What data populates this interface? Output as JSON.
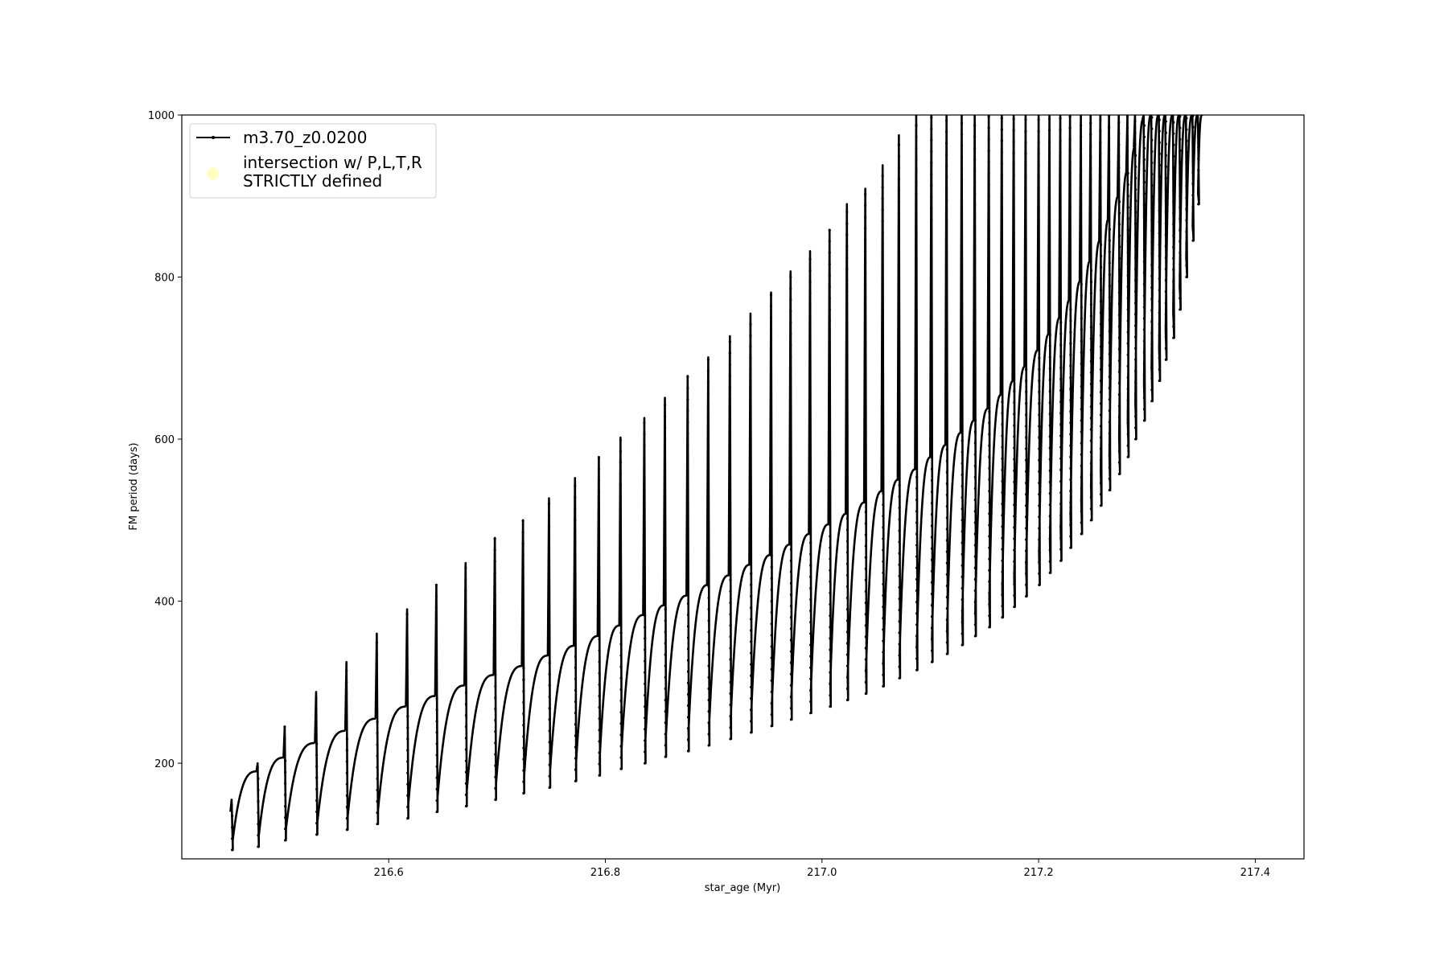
{
  "chart_data": {
    "type": "line",
    "title": "",
    "xlabel": "star_age (Myr)",
    "ylabel": "FM period (days)",
    "xlim": [
      216.409,
      217.445
    ],
    "ylim": [
      82,
      1000
    ],
    "xticks": [
      "216.6",
      "216.8",
      "217.0",
      "217.2",
      "217.4"
    ],
    "yticks": [
      "200",
      "400",
      "600",
      "800",
      "1000"
    ],
    "grid": false,
    "legend": {
      "placement": "upper-left",
      "entries": [
        {
          "label": "m3.70_z0.0200",
          "marker": "line-with-dots",
          "color": "#000000"
        },
        {
          "label_line1": "intersection w/ P,L,T,R",
          "label_line2": "STRICTLY defined",
          "marker": "circle",
          "color": "#ffffc0"
        }
      ]
    },
    "series": [
      {
        "name": "m3.70_z0.0200",
        "color": "#000000",
        "description_of_cycles": "per-cycle values",
        "cycle_start_age": [
          216.455,
          216.479,
          216.504,
          216.533,
          216.561,
          216.589,
          216.617,
          216.644,
          216.671,
          216.698,
          216.724,
          216.748,
          216.772,
          216.794,
          216.814,
          216.836,
          216.855,
          216.876,
          216.895,
          216.915,
          216.934,
          216.953,
          216.971,
          216.989,
          217.007,
          217.023,
          217.04,
          217.056,
          217.071,
          217.087,
          217.101,
          217.115,
          217.129,
          217.141,
          217.154,
          217.166,
          217.177,
          217.188,
          217.2,
          217.21,
          217.22,
          217.229,
          217.239,
          217.248,
          217.257,
          217.265,
          217.274,
          217.282,
          217.289,
          217.297,
          217.304,
          217.311,
          217.317,
          217.324,
          217.33,
          217.336,
          217.342,
          217.347
        ],
        "spike_peak": [
          155,
          200,
          245,
          288,
          325,
          360,
          390,
          420,
          447,
          478,
          500,
          527,
          552,
          578,
          602,
          626,
          651,
          678,
          701,
          727,
          755,
          781,
          807,
          832,
          858,
          890,
          909,
          938,
          975,
          1000,
          1000,
          1000,
          1000,
          1000,
          1000,
          1000,
          1000,
          1000,
          1000,
          1000,
          1000,
          1000,
          1000,
          1000,
          1000,
          1000,
          1000,
          1000,
          1000,
          1000,
          1000,
          1000,
          1000,
          1000,
          1000,
          1000,
          1000,
          1000
        ],
        "trough": [
          93,
          97,
          105,
          112,
          118,
          125,
          132,
          140,
          147,
          155,
          163,
          170,
          178,
          185,
          193,
          200,
          208,
          215,
          222,
          230,
          238,
          246,
          254,
          262,
          270,
          278,
          286,
          295,
          305,
          315,
          325,
          335,
          346,
          357,
          368,
          380,
          393,
          406,
          420,
          435,
          450,
          466,
          483,
          500,
          518,
          537,
          557,
          578,
          600,
          623,
          647,
          672,
          698,
          725,
          760,
          800,
          845,
          890
        ],
        "cycle_max": [
          190,
          207,
          225,
          240,
          255,
          270,
          283,
          296,
          309,
          320,
          333,
          345,
          357,
          370,
          383,
          395,
          407,
          420,
          432,
          445,
          457,
          470,
          483,
          495,
          508,
          522,
          536,
          550,
          563,
          578,
          593,
          608,
          623,
          638,
          655,
          672,
          690,
          710,
          730,
          750,
          772,
          795,
          820,
          845,
          872,
          900,
          930,
          960,
          995,
          1000,
          1000,
          1000,
          1000,
          1000,
          1000,
          1000,
          1000,
          1000
        ]
      }
    ]
  }
}
